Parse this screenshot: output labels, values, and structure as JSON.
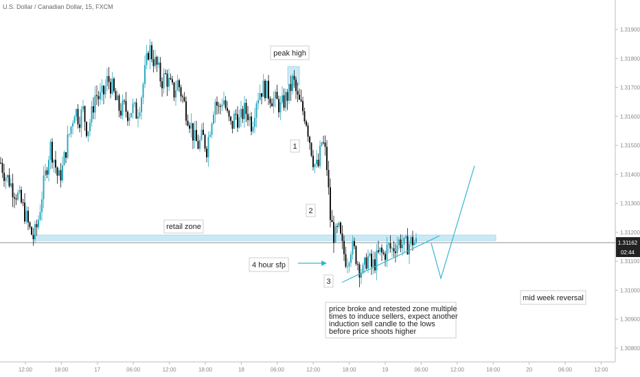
{
  "chart_data": {
    "type": "candlestick",
    "title": "U.S. Dollar / Canadian Dollar, 15, FXCM",
    "y_ticks": [
      "1.31900",
      "1.31800",
      "1.31700",
      "1.31600",
      "1.31500",
      "1.31400",
      "1.31300",
      "1.31200",
      "1.31100",
      "1.31000",
      "1.30900",
      "1.30800"
    ],
    "y_tick_values": [
      1.319,
      1.318,
      1.317,
      1.316,
      1.315,
      1.314,
      1.313,
      1.312,
      1.311,
      1.31,
      1.309,
      1.308
    ],
    "ylim": [
      1.3076,
      1.3202
    ],
    "x_ticks": [
      "12:00",
      "18:00",
      "17",
      "06:00",
      "12:00",
      "18:00",
      "18",
      "06:00",
      "12:00",
      "18:00",
      "19",
      "06:00",
      "12:00",
      "18:00",
      "20",
      "06:00",
      "12:00"
    ],
    "current_price": "1.31162",
    "countdown": "02:44",
    "price_path": [
      [
        0,
        1.3144
      ],
      [
        6,
        1.314
      ],
      [
        12,
        1.3138
      ],
      [
        18,
        1.3135
      ],
      [
        24,
        1.3133
      ],
      [
        30,
        1.313
      ],
      [
        36,
        1.3126
      ],
      [
        42,
        1.3121
      ],
      [
        48,
        1.3118
      ],
      [
        54,
        1.3123
      ],
      [
        60,
        1.3133
      ],
      [
        66,
        1.3141
      ],
      [
        72,
        1.315
      ],
      [
        78,
        1.3145
      ],
      [
        84,
        1.3138
      ],
      [
        90,
        1.3142
      ],
      [
        96,
        1.315
      ],
      [
        102,
        1.3156
      ],
      [
        108,
        1.3163
      ],
      [
        114,
        1.3159
      ],
      [
        120,
        1.3162
      ],
      [
        126,
        1.3155
      ],
      [
        132,
        1.316
      ],
      [
        138,
        1.3168
      ],
      [
        144,
        1.3166
      ],
      [
        150,
        1.3168
      ],
      [
        156,
        1.3173
      ],
      [
        162,
        1.317
      ],
      [
        168,
        1.3165
      ],
      [
        174,
        1.3162
      ],
      [
        180,
        1.3163
      ],
      [
        186,
        1.3161
      ],
      [
        192,
        1.3163
      ],
      [
        198,
        1.3161
      ],
      [
        204,
        1.3166
      ],
      [
        210,
        1.3175
      ],
      [
        216,
        1.3184
      ],
      [
        222,
        1.318
      ],
      [
        228,
        1.3177
      ],
      [
        234,
        1.3172
      ],
      [
        240,
        1.3174
      ],
      [
        246,
        1.3171
      ],
      [
        252,
        1.3168
      ],
      [
        258,
        1.3172
      ],
      [
        264,
        1.3167
      ],
      [
        270,
        1.3162
      ],
      [
        276,
        1.3158
      ],
      [
        282,
        1.3152
      ],
      [
        288,
        1.315
      ],
      [
        294,
        1.3153
      ],
      [
        300,
        1.3149
      ],
      [
        306,
        1.3158
      ],
      [
        312,
        1.3166
      ],
      [
        318,
        1.3162
      ],
      [
        324,
        1.3167
      ],
      [
        330,
        1.316
      ],
      [
        336,
        1.3156
      ],
      [
        342,
        1.3161
      ],
      [
        348,
        1.3158
      ],
      [
        354,
        1.3162
      ],
      [
        360,
        1.3161
      ],
      [
        366,
        1.3157
      ],
      [
        372,
        1.3166
      ],
      [
        378,
        1.3169
      ],
      [
        384,
        1.317
      ],
      [
        390,
        1.3168
      ],
      [
        396,
        1.3166
      ],
      [
        402,
        1.3165
      ],
      [
        408,
        1.3163
      ],
      [
        414,
        1.3166
      ],
      [
        420,
        1.3168
      ],
      [
        426,
        1.3173
      ],
      [
        432,
        1.3166
      ],
      [
        438,
        1.3163
      ],
      [
        444,
        1.316
      ],
      [
        450,
        1.3152
      ],
      [
        456,
        1.3144
      ],
      [
        462,
        1.3142
      ],
      [
        468,
        1.3152
      ],
      [
        474,
        1.3146
      ],
      [
        480,
        1.3125
      ],
      [
        486,
        1.3118
      ],
      [
        492,
        1.3121
      ],
      [
        498,
        1.3114
      ],
      [
        504,
        1.311
      ],
      [
        510,
        1.3115
      ],
      [
        516,
        1.3113
      ],
      [
        522,
        1.3108
      ],
      [
        528,
        1.3106
      ],
      [
        534,
        1.3112
      ],
      [
        540,
        1.3108
      ],
      [
        546,
        1.311
      ],
      [
        552,
        1.3113
      ],
      [
        558,
        1.3112
      ],
      [
        564,
        1.3115
      ],
      [
        570,
        1.3114
      ],
      [
        576,
        1.3116
      ],
      [
        582,
        1.3117
      ],
      [
        588,
        1.3115
      ],
      [
        594,
        1.3116
      ],
      [
        600,
        1.3117
      ],
      [
        606,
        1.3116
      ]
    ],
    "annotations": {
      "peak_high": "peak high",
      "label_1": "1",
      "label_2": "2",
      "label_3": "3",
      "retail_zone": "retail zone",
      "four_hour_sfp": "4 hour sfp",
      "commentary": [
        "price broke and retested zone multiple",
        "times to induce sellers, expect another",
        "induction sell candle to the lows",
        "before price shoots higher"
      ],
      "mid_week_reversal": "mid week reversal"
    },
    "colors": {
      "bull_candle": "#2aa8c0",
      "bear_candle": "#111111",
      "zone_fill": "#c9e9f6",
      "projection": "#33b6cc",
      "price_line": "#555555",
      "price_label_bg": "#222222"
    },
    "legend": "none",
    "grid": false
  }
}
